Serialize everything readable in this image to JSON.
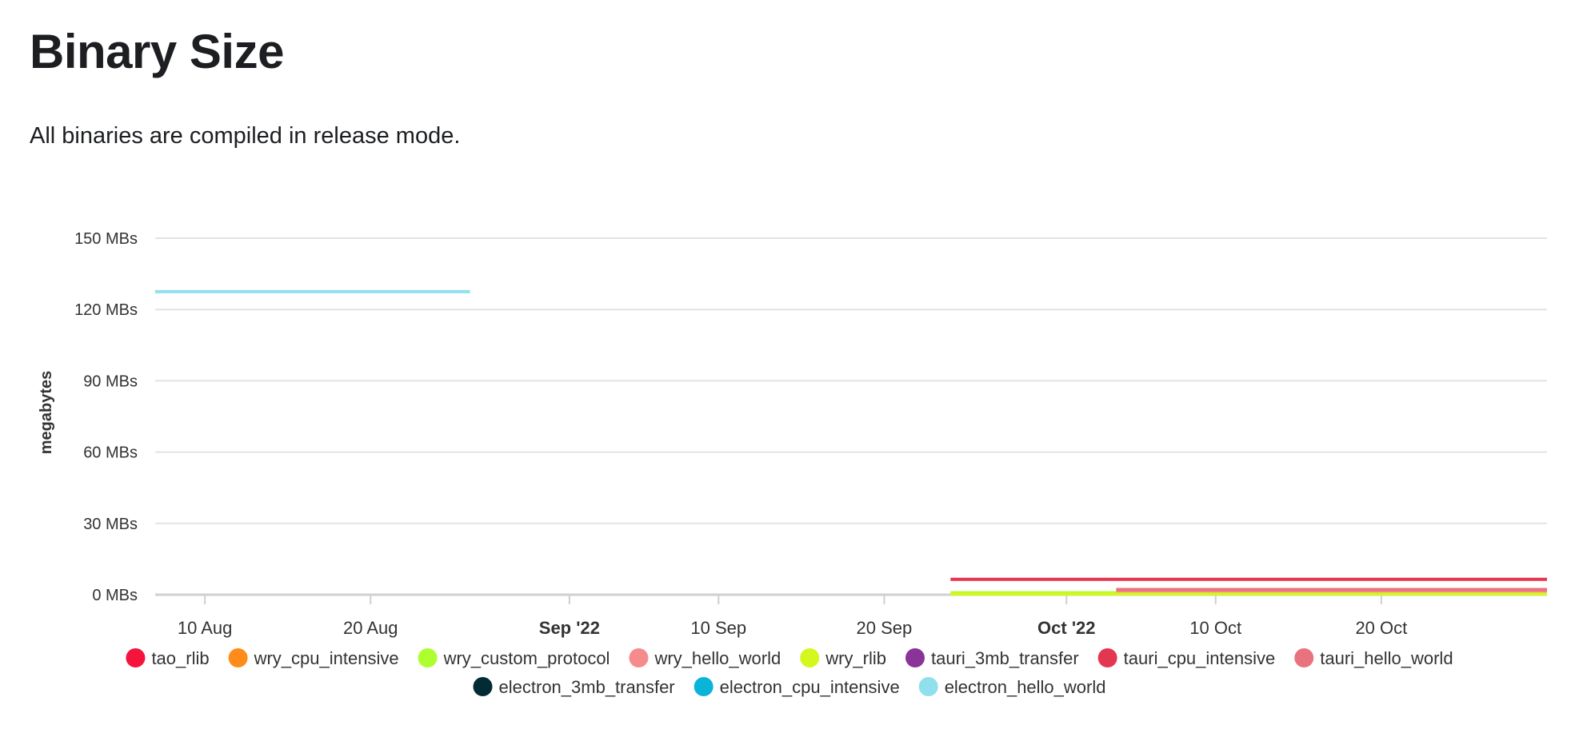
{
  "page": {
    "title": "Binary Size",
    "description": "All binaries are compiled in release mode."
  },
  "chart_data": {
    "type": "line",
    "ylabel": "megabytes",
    "ylim": [
      0,
      150
    ],
    "y_ticks": [
      {
        "value": 0,
        "label": "0 MBs"
      },
      {
        "value": 30,
        "label": "30 MBs"
      },
      {
        "value": 60,
        "label": "60 MBs"
      },
      {
        "value": 90,
        "label": "90 MBs"
      },
      {
        "value": 120,
        "label": "120 MBs"
      },
      {
        "value": 150,
        "label": "150 MBs"
      }
    ],
    "xlim": [
      "2022-08-07",
      "2022-10-30"
    ],
    "x_ticks": [
      {
        "date": "2022-08-10",
        "label": "10 Aug",
        "major": false
      },
      {
        "date": "2022-08-20",
        "label": "20 Aug",
        "major": false
      },
      {
        "date": "2022-09-01",
        "label": "Sep '22",
        "major": true
      },
      {
        "date": "2022-09-10",
        "label": "10 Sep",
        "major": false
      },
      {
        "date": "2022-09-20",
        "label": "20 Sep",
        "major": false
      },
      {
        "date": "2022-10-01",
        "label": "Oct '22",
        "major": true
      },
      {
        "date": "2022-10-10",
        "label": "10 Oct",
        "major": false
      },
      {
        "date": "2022-10-20",
        "label": "20 Oct",
        "major": false
      }
    ],
    "grid": true,
    "legend_position": "bottom",
    "series": [
      {
        "name": "tao_rlib",
        "color": "#f4143c",
        "points": []
      },
      {
        "name": "wry_cpu_intensive",
        "color": "#ff8c1a",
        "points": []
      },
      {
        "name": "wry_custom_protocol",
        "color": "#adff2f",
        "points": [
          {
            "x": "2022-09-24",
            "y": 0.8
          },
          {
            "x": "2022-10-30",
            "y": 0.8
          }
        ]
      },
      {
        "name": "wry_hello_world",
        "color": "#f58b8d",
        "points": [
          {
            "x": "2022-10-04",
            "y": 1.2
          },
          {
            "x": "2022-10-30",
            "y": 1.2
          }
        ]
      },
      {
        "name": "wry_rlib",
        "color": "#d4f71e",
        "points": [
          {
            "x": "2022-09-24",
            "y": 0.3
          },
          {
            "x": "2022-10-30",
            "y": 0.3
          }
        ]
      },
      {
        "name": "tauri_3mb_transfer",
        "color": "#8a3398",
        "points": []
      },
      {
        "name": "tauri_cpu_intensive",
        "color": "#e33650",
        "points": [
          {
            "x": "2022-09-24",
            "y": 6.5
          },
          {
            "x": "2022-10-30",
            "y": 6.5
          }
        ]
      },
      {
        "name": "tauri_hello_world",
        "color": "#e9727f",
        "points": [
          {
            "x": "2022-10-04",
            "y": 2.2
          },
          {
            "x": "2022-10-30",
            "y": 2.2
          }
        ]
      },
      {
        "name": "electron_3mb_transfer",
        "color": "#032b35",
        "points": []
      },
      {
        "name": "electron_cpu_intensive",
        "color": "#0ab4d8",
        "points": []
      },
      {
        "name": "electron_hello_world",
        "color": "#8fdfed",
        "points": [
          {
            "x": "2022-08-07",
            "y": 127.5
          },
          {
            "x": "2022-08-26",
            "y": 127.5
          }
        ]
      }
    ]
  }
}
